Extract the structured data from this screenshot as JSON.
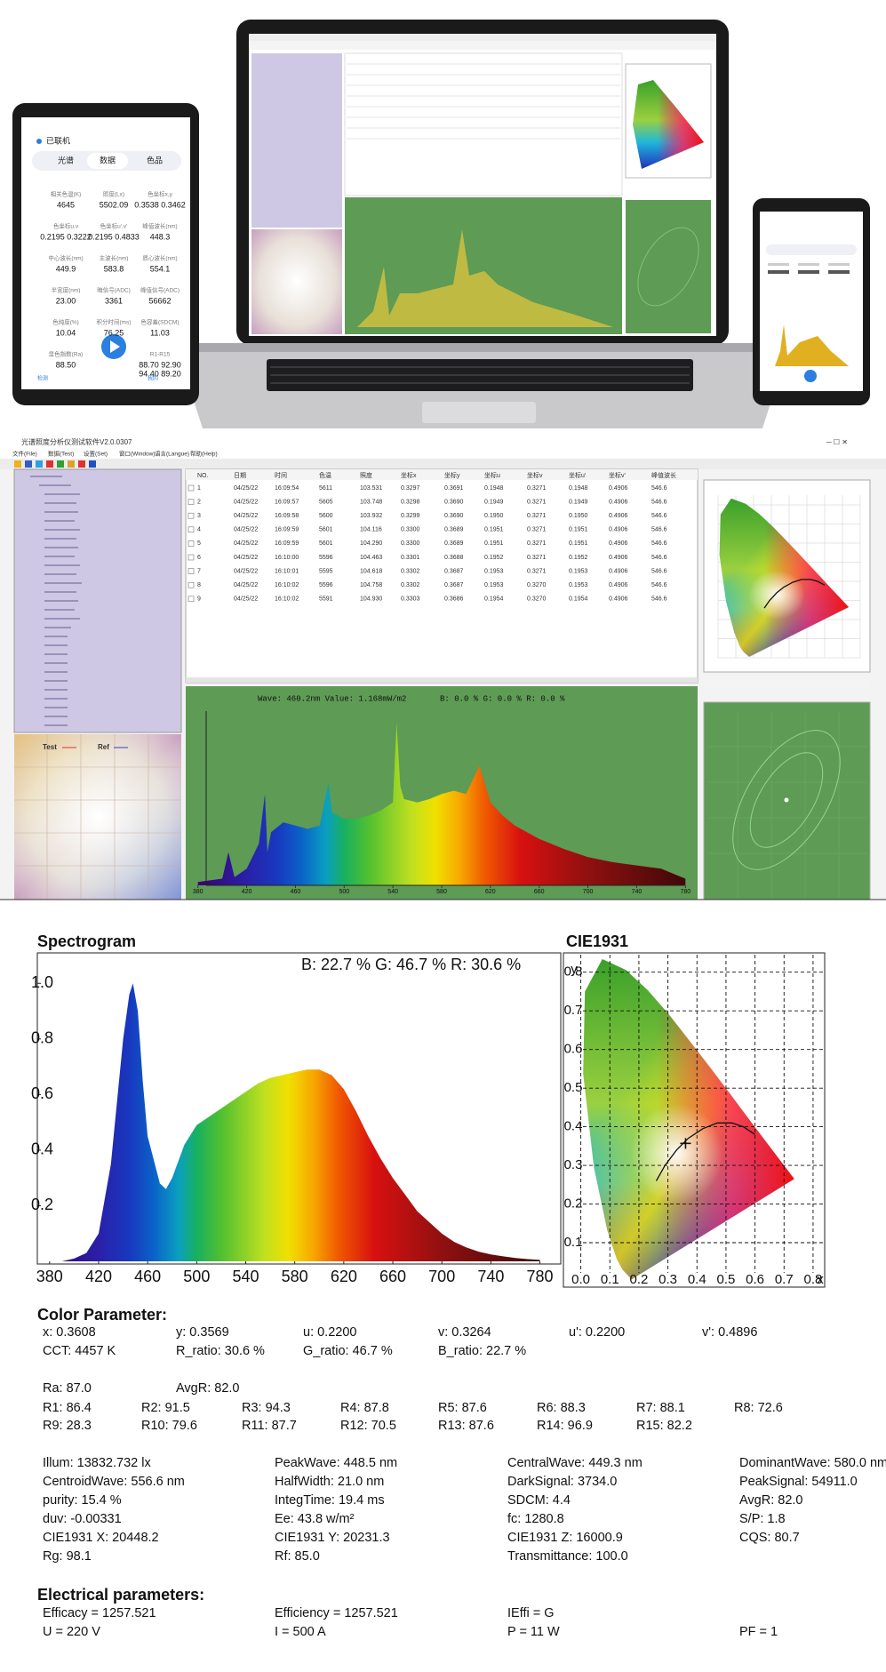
{
  "tablet": {
    "status": "已联机",
    "tabs": [
      "光谱",
      "数据",
      "色品"
    ],
    "grid": [
      [
        {
          "label": "相关色温(K)",
          "value": "4645"
        },
        {
          "label": "照度(Lx)",
          "value": "5502.09"
        },
        {
          "label": "色坐标x,y",
          "value": "0.3538 0.3462"
        }
      ],
      [
        {
          "label": "色坐标u,v",
          "value": "0.2195 0.3222"
        },
        {
          "label": "色坐标u',v'",
          "value": "0.2195 0.4833"
        },
        {
          "label": "峰值波长(nm)",
          "value": "448.3"
        }
      ],
      [
        {
          "label": "中心波长(nm)",
          "value": "449.9"
        },
        {
          "label": "主波长(nm)",
          "value": "583.8"
        },
        {
          "label": "质心波长(nm)",
          "value": "554.1"
        }
      ],
      [
        {
          "label": "半宽度(nm)",
          "value": "23.00"
        },
        {
          "label": "暗信号(ADC)",
          "value": "3361"
        },
        {
          "label": "峰值信号(ADC)",
          "value": "56662"
        }
      ],
      [
        {
          "label": "色纯度(%)",
          "value": "10.04"
        },
        {
          "label": "积分时间(ms)",
          "value": "76.25"
        },
        {
          "label": "色容差(SDCM)",
          "value": "11.03"
        }
      ],
      [
        {
          "label": "显色指数(Ra)",
          "value": "88.50"
        },
        {
          "label": "R1-R15",
          "value": "88.70 92.90"
        }
      ]
    ],
    "grid_extra": "94.40 89.20",
    "nav": [
      "检测",
      "我的"
    ]
  },
  "software": {
    "title": "光谱照度分析仪测试软件V2.0.0307",
    "menu": [
      "文件(File)",
      "数据(Test)",
      "设置(Set)",
      "窗口(Window)",
      "语言(Langue)",
      "帮助(Help)"
    ],
    "table": {
      "headers": [
        "NO.",
        "日期",
        "时间",
        "色温",
        "照度",
        "坐标x",
        "坐标y",
        "坐标u",
        "坐标v",
        "坐标u'",
        "坐标v'",
        "峰值波长"
      ],
      "rows": [
        [
          "1",
          "04/25/22",
          "16:09:54",
          "5611",
          "103.531",
          "0.3297",
          "0.3691",
          "0.1948",
          "0.3271",
          "0.1948",
          "0.4906",
          "546.6"
        ],
        [
          "2",
          "04/25/22",
          "16:09:57",
          "5605",
          "103.748",
          "0.3298",
          "0.3690",
          "0.1949",
          "0.3271",
          "0.1949",
          "0.4906",
          "546.6"
        ],
        [
          "3",
          "04/25/22",
          "16:09:58",
          "5600",
          "103.932",
          "0.3299",
          "0.3690",
          "0.1950",
          "0.3271",
          "0.1950",
          "0.4906",
          "546.6"
        ],
        [
          "4",
          "04/25/22",
          "16:09:59",
          "5601",
          "104.116",
          "0.3300",
          "0.3689",
          "0.1951",
          "0.3271",
          "0.1951",
          "0.4906",
          "546.6"
        ],
        [
          "5",
          "04/25/22",
          "16:09:59",
          "5601",
          "104.290",
          "0.3300",
          "0.3689",
          "0.1951",
          "0.3271",
          "0.1951",
          "0.4906",
          "546.6"
        ],
        [
          "6",
          "04/25/22",
          "16:10:00",
          "5596",
          "104.463",
          "0.3301",
          "0.3688",
          "0.1952",
          "0.3271",
          "0.1952",
          "0.4906",
          "546.6"
        ],
        [
          "7",
          "04/25/22",
          "16:10:01",
          "5595",
          "104.618",
          "0.3302",
          "0.3687",
          "0.1953",
          "0.3271",
          "0.1953",
          "0.4906",
          "546.6"
        ],
        [
          "8",
          "04/25/22",
          "16:10:02",
          "5596",
          "104.758",
          "0.3302",
          "0.3687",
          "0.1953",
          "0.3270",
          "0.1953",
          "0.4906",
          "546.6"
        ],
        [
          "9",
          "04/25/22",
          "16:10:02",
          "5591",
          "104.930",
          "0.3303",
          "0.3686",
          "0.1954",
          "0.3270",
          "0.1954",
          "0.4906",
          "546.6"
        ]
      ]
    },
    "wave_info": "Wave: 460.2nm Value: 1.168mW/m2",
    "rgb_info": "B: 0.0 %  G: 0.0 %  R: 0.0 %",
    "legend": [
      "Test",
      "Ref"
    ],
    "chart": {
      "type": "area",
      "x": [
        380,
        400,
        405,
        410,
        420,
        430,
        435,
        437,
        440,
        450,
        460,
        470,
        480,
        487,
        490,
        500,
        510,
        520,
        530,
        540,
        543,
        546,
        549,
        560,
        570,
        580,
        590,
        600,
        611,
        620,
        630,
        640,
        650,
        660,
        680,
        700,
        720,
        740,
        760,
        780
      ],
      "values": [
        0.02,
        0.04,
        0.2,
        0.05,
        0.1,
        0.25,
        0.55,
        0.2,
        0.32,
        0.38,
        0.36,
        0.34,
        0.36,
        0.62,
        0.44,
        0.4,
        0.4,
        0.42,
        0.45,
        0.5,
        0.98,
        0.6,
        0.52,
        0.5,
        0.52,
        0.55,
        0.57,
        0.55,
        0.72,
        0.5,
        0.42,
        0.36,
        0.32,
        0.28,
        0.22,
        0.17,
        0.14,
        0.12,
        0.1,
        0.04
      ],
      "xlim": [
        370,
        790
      ],
      "ylim": [
        0,
        1.05
      ],
      "xticks": [
        380,
        420,
        460,
        500,
        540,
        580,
        620,
        660,
        700,
        740,
        780
      ]
    }
  },
  "report": {
    "spectrogram": {
      "type": "area",
      "title": "Spectrogram",
      "ratio_text": "B: 22.7 %   G: 46.7 %   R: 30.6 %",
      "x": [
        380,
        390,
        400,
        410,
        420,
        430,
        440,
        445,
        448,
        452,
        456,
        460,
        470,
        475,
        480,
        490,
        500,
        510,
        520,
        530,
        540,
        550,
        560,
        570,
        580,
        590,
        600,
        610,
        620,
        630,
        640,
        650,
        660,
        670,
        680,
        690,
        700,
        710,
        720,
        730,
        740,
        750,
        760,
        770,
        780
      ],
      "values": [
        0,
        0,
        0.01,
        0.03,
        0.1,
        0.35,
        0.8,
        0.96,
        1.0,
        0.9,
        0.65,
        0.45,
        0.28,
        0.26,
        0.3,
        0.42,
        0.49,
        0.52,
        0.55,
        0.58,
        0.61,
        0.64,
        0.66,
        0.67,
        0.68,
        0.69,
        0.69,
        0.67,
        0.62,
        0.54,
        0.45,
        0.37,
        0.3,
        0.24,
        0.18,
        0.14,
        0.1,
        0.07,
        0.05,
        0.035,
        0.025,
        0.018,
        0.012,
        0.008,
        0.005
      ],
      "xlim": [
        370,
        797
      ],
      "ylim": [
        0,
        1.1
      ],
      "xticks": [
        380,
        420,
        460,
        500,
        540,
        580,
        620,
        660,
        700,
        740,
        780
      ],
      "yticks": [
        0.2,
        0.4,
        0.6,
        0.8,
        {
          "value": 1,
          "label": "1.0"
        }
      ]
    },
    "cie": {
      "type": "scatter",
      "title": "CIE1931",
      "x_label": "x",
      "y_label": "y",
      "xlim": [
        -0.06,
        0.84
      ],
      "ylim": [
        -0.015,
        0.85
      ],
      "xticks": [
        {
          "value": 0,
          "label": "0.0"
        },
        0.1,
        0.2,
        0.3,
        0.4,
        0.5,
        0.6,
        0.7,
        0.8
      ],
      "yticks": [
        0.1,
        0.2,
        0.3,
        0.4,
        0.5,
        0.6,
        0.7,
        0.8
      ],
      "point": {
        "x": 0.3608,
        "y": 0.3569
      },
      "grid": true
    },
    "color_title": "Color Parameter:",
    "color_rows": [
      [
        "x: 0.3608",
        "y: 0.3569",
        "u: 0.2200",
        "v: 0.3264",
        "u': 0.2200",
        "v': 0.4896"
      ],
      [
        "CCT: 4457 K",
        "R_ratio: 30.6 %",
        "G_ratio: 46.7 %",
        "B_ratio: 22.7 %"
      ],
      [
        "Ra: 87.0",
        "AvgR: 82.0"
      ],
      [
        "R1: 86.4",
        "R2: 91.5",
        "R3: 94.3",
        "R4: 87.8",
        "R5: 87.6",
        "R6: 88.3",
        "R7: 88.1",
        "R8: 72.6"
      ],
      [
        "R9: 28.3",
        "R10: 79.6",
        "R11: 87.7",
        "R12: 70.5",
        "R13: 87.6",
        "R14: 96.9",
        "R15: 82.2"
      ],
      [
        "Illum: 13832.732 lx",
        "PeakWave: 448.5 nm",
        "CentralWave: 449.3 nm",
        "DominantWave: 580.0 nm"
      ],
      [
        "CentroidWave: 556.6 nm",
        "HalfWidth: 21.0 nm",
        "DarkSignal: 3734.0",
        "PeakSignal: 54911.0"
      ],
      [
        "purity: 15.4 %",
        "IntegTime: 19.4 ms",
        "SDCM: 4.4",
        "AvgR: 82.0"
      ],
      [
        "duv: -0.00331",
        "Ee: 43.8 w/m²",
        "fc: 1280.8",
        "S/P: 1.8"
      ],
      [
        "CIE1931 X: 20448.2",
        "CIE1931 Y: 20231.3",
        "CIE1931 Z: 16000.9",
        "CQS: 80.7"
      ],
      [
        "Rg: 98.1",
        "Rf: 85.0",
        "Transmittance: 100.0"
      ]
    ],
    "electrical_title": "Electrical parameters:",
    "electrical_rows": [
      [
        "Efficacy = 1257.521",
        "Efficiency = 1257.521",
        "IEffi = G"
      ],
      [
        "U = 220 V",
        "I = 500 A",
        "P = 11 W",
        "PF = 1"
      ]
    ]
  }
}
